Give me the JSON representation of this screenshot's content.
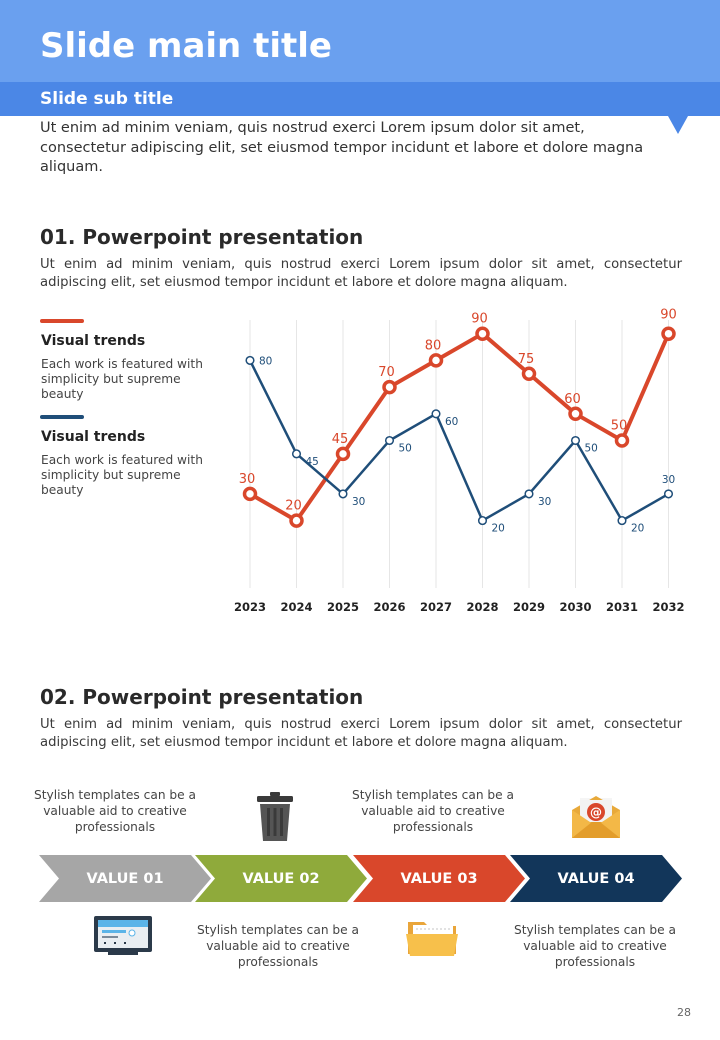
{
  "header": {
    "title": "Slide main title",
    "subtitle": "Slide sub title",
    "intro": "Ut enim ad minim veniam, quis nostrud exerci  Lorem ipsum dolor sit amet, consectetur adipiscing elit, set eiusmod tempor incidunt et labore et dolore magna aliquam."
  },
  "section1": {
    "title": "01. Powerpoint presentation",
    "text": "Ut enim ad minim veniam, quis nostrud exerci  Lorem ipsum dolor sit amet, consectetur adipiscing elit, set eiusmod tempor incidunt et labore et dolore magna aliquam.",
    "legend": [
      {
        "title": "Visual trends",
        "desc": "Each work is featured with simplicity but supreme beauty",
        "color": "#d9472b"
      },
      {
        "title": "Visual trends",
        "desc": "Each work is featured with simplicity but supreme beauty",
        "color": "#1f4e79"
      }
    ]
  },
  "chart_data": {
    "type": "line",
    "x": [
      "2023",
      "2024",
      "2025",
      "2026",
      "2027",
      "2028",
      "2029",
      "2030",
      "2031",
      "2032"
    ],
    "series": [
      {
        "values": [
          30,
          20,
          45,
          70,
          80,
          90,
          75,
          60,
          50,
          90
        ],
        "color": "#d9472b"
      },
      {
        "values": [
          80,
          45,
          30,
          50,
          60,
          20,
          30,
          50,
          20,
          30
        ],
        "color": "#1f4e79"
      }
    ],
    "ylim": [
      0,
      100
    ],
    "grid": "vertical"
  },
  "section2": {
    "title": "02. Powerpoint presentation",
    "text": "Ut enim ad minim veniam, quis nostrud exerci  Lorem ipsum dolor sit amet, consectetur adipiscing elit, set eiusmod tempor incidunt et labore et dolore magna aliquam.",
    "steps": [
      {
        "label": "VALUE 01",
        "color": "#a6a6a6"
      },
      {
        "label": "VALUE 02",
        "color": "#8faa3b"
      },
      {
        "label": "VALUE 03",
        "color": "#d9472b"
      },
      {
        "label": "VALUE 04",
        "color": "#12365a"
      }
    ],
    "captions": {
      "top1": "Stylish templates can be a valuable aid to creative professionals",
      "top2": "Stylish templates can be a valuable aid to creative professionals",
      "bottom1": "Stylish templates can be a valuable aid to creative professionals",
      "bottom2": "Stylish templates can be a valuable aid to creative professionals"
    },
    "icons": [
      "trash-icon",
      "email-icon",
      "monitor-icon",
      "folder-icon"
    ]
  },
  "page_number": "28"
}
